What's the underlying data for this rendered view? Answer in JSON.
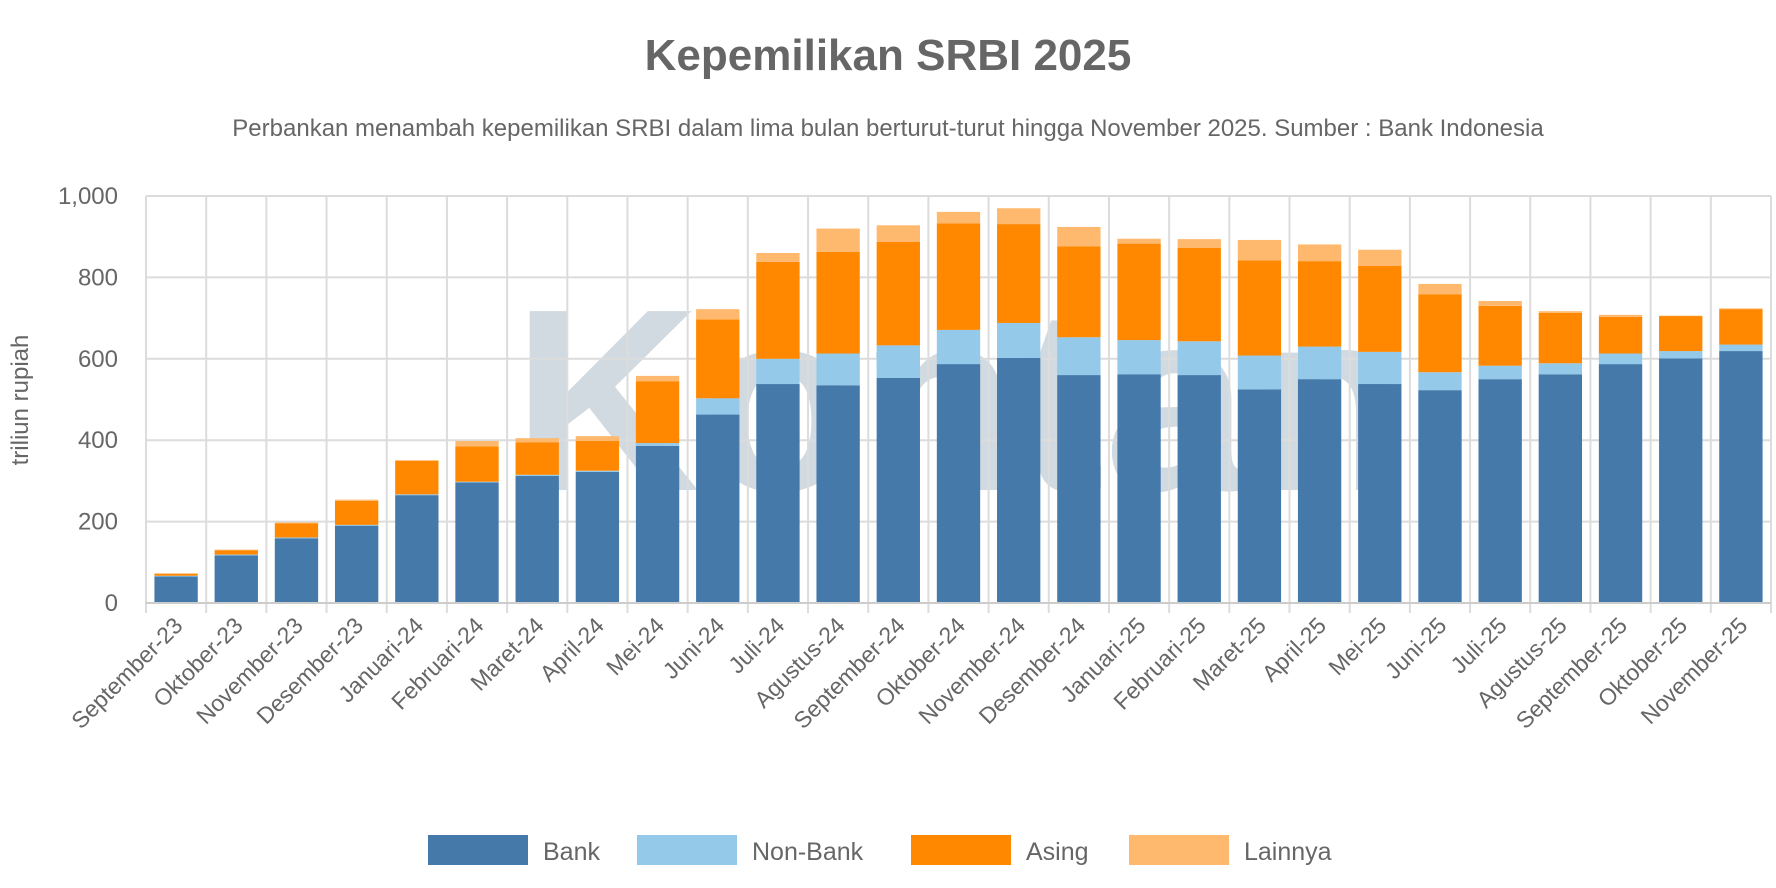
{
  "chart_data": {
    "type": "bar",
    "stacked": true,
    "title": "Kepemilikan SRBI 2025",
    "subtitle": "Perbankan menambah kepemilikan SRBI dalam lima bulan berturut-turut hingga November 2025. Sumber : Bank Indonesia",
    "ylabel": "triliun rupiah",
    "xlabel": "",
    "ylim": [
      0,
      1000
    ],
    "yticks": [
      0,
      200,
      400,
      600,
      800,
      1000
    ],
    "ytick_labels": [
      "0",
      "200",
      "400",
      "600",
      "800",
      "1,000"
    ],
    "grid": true,
    "legend_position": "bottom",
    "watermark": "Kontan",
    "categories": [
      "September-23",
      "Oktober-23",
      "November-23",
      "Desember-23",
      "Januari-24",
      "Februari-24",
      "Maret-24",
      "April-24",
      "Mei-24",
      "Juni-24",
      "Juli-24",
      "Agustus-24",
      "September-24",
      "Oktober-24",
      "November-24",
      "Desember-24",
      "Januari-25",
      "Februari-25",
      "Maret-25",
      "April-25",
      "Mei-25",
      "Juni-25",
      "Juli-25",
      "Agustus-25",
      "September-25",
      "Oktober-25",
      "November-25"
    ],
    "series": [
      {
        "name": "Bank",
        "color": "#4479aa",
        "values": [
          65,
          117,
          159,
          190,
          265,
          296,
          312,
          322,
          386,
          463,
          538,
          535,
          553,
          587,
          602,
          560,
          562,
          560,
          525,
          550,
          538,
          523,
          550,
          562,
          587,
          601,
          619
        ]
      },
      {
        "name": "Non-Bank",
        "color": "#94c9ea",
        "values": [
          2,
          2,
          2,
          2,
          2,
          2,
          3,
          3,
          7,
          40,
          62,
          78,
          80,
          84,
          86,
          93,
          84,
          83,
          83,
          80,
          79,
          44,
          33,
          27,
          26,
          18,
          16
        ]
      },
      {
        "name": "Asing",
        "color": "#ff8800",
        "values": [
          5,
          10,
          35,
          59,
          82,
          87,
          80,
          73,
          152,
          194,
          238,
          250,
          254,
          262,
          243,
          223,
          237,
          230,
          234,
          210,
          211,
          191,
          147,
          124,
          90,
          86,
          87
        ]
      },
      {
        "name": "Lainnya",
        "color": "#ffb96e",
        "values": [
          1,
          2,
          2,
          3,
          2,
          13,
          10,
          12,
          13,
          25,
          22,
          57,
          41,
          28,
          39,
          48,
          12,
          21,
          50,
          41,
          40,
          26,
          12,
          4,
          5,
          1,
          2
        ]
      }
    ]
  }
}
